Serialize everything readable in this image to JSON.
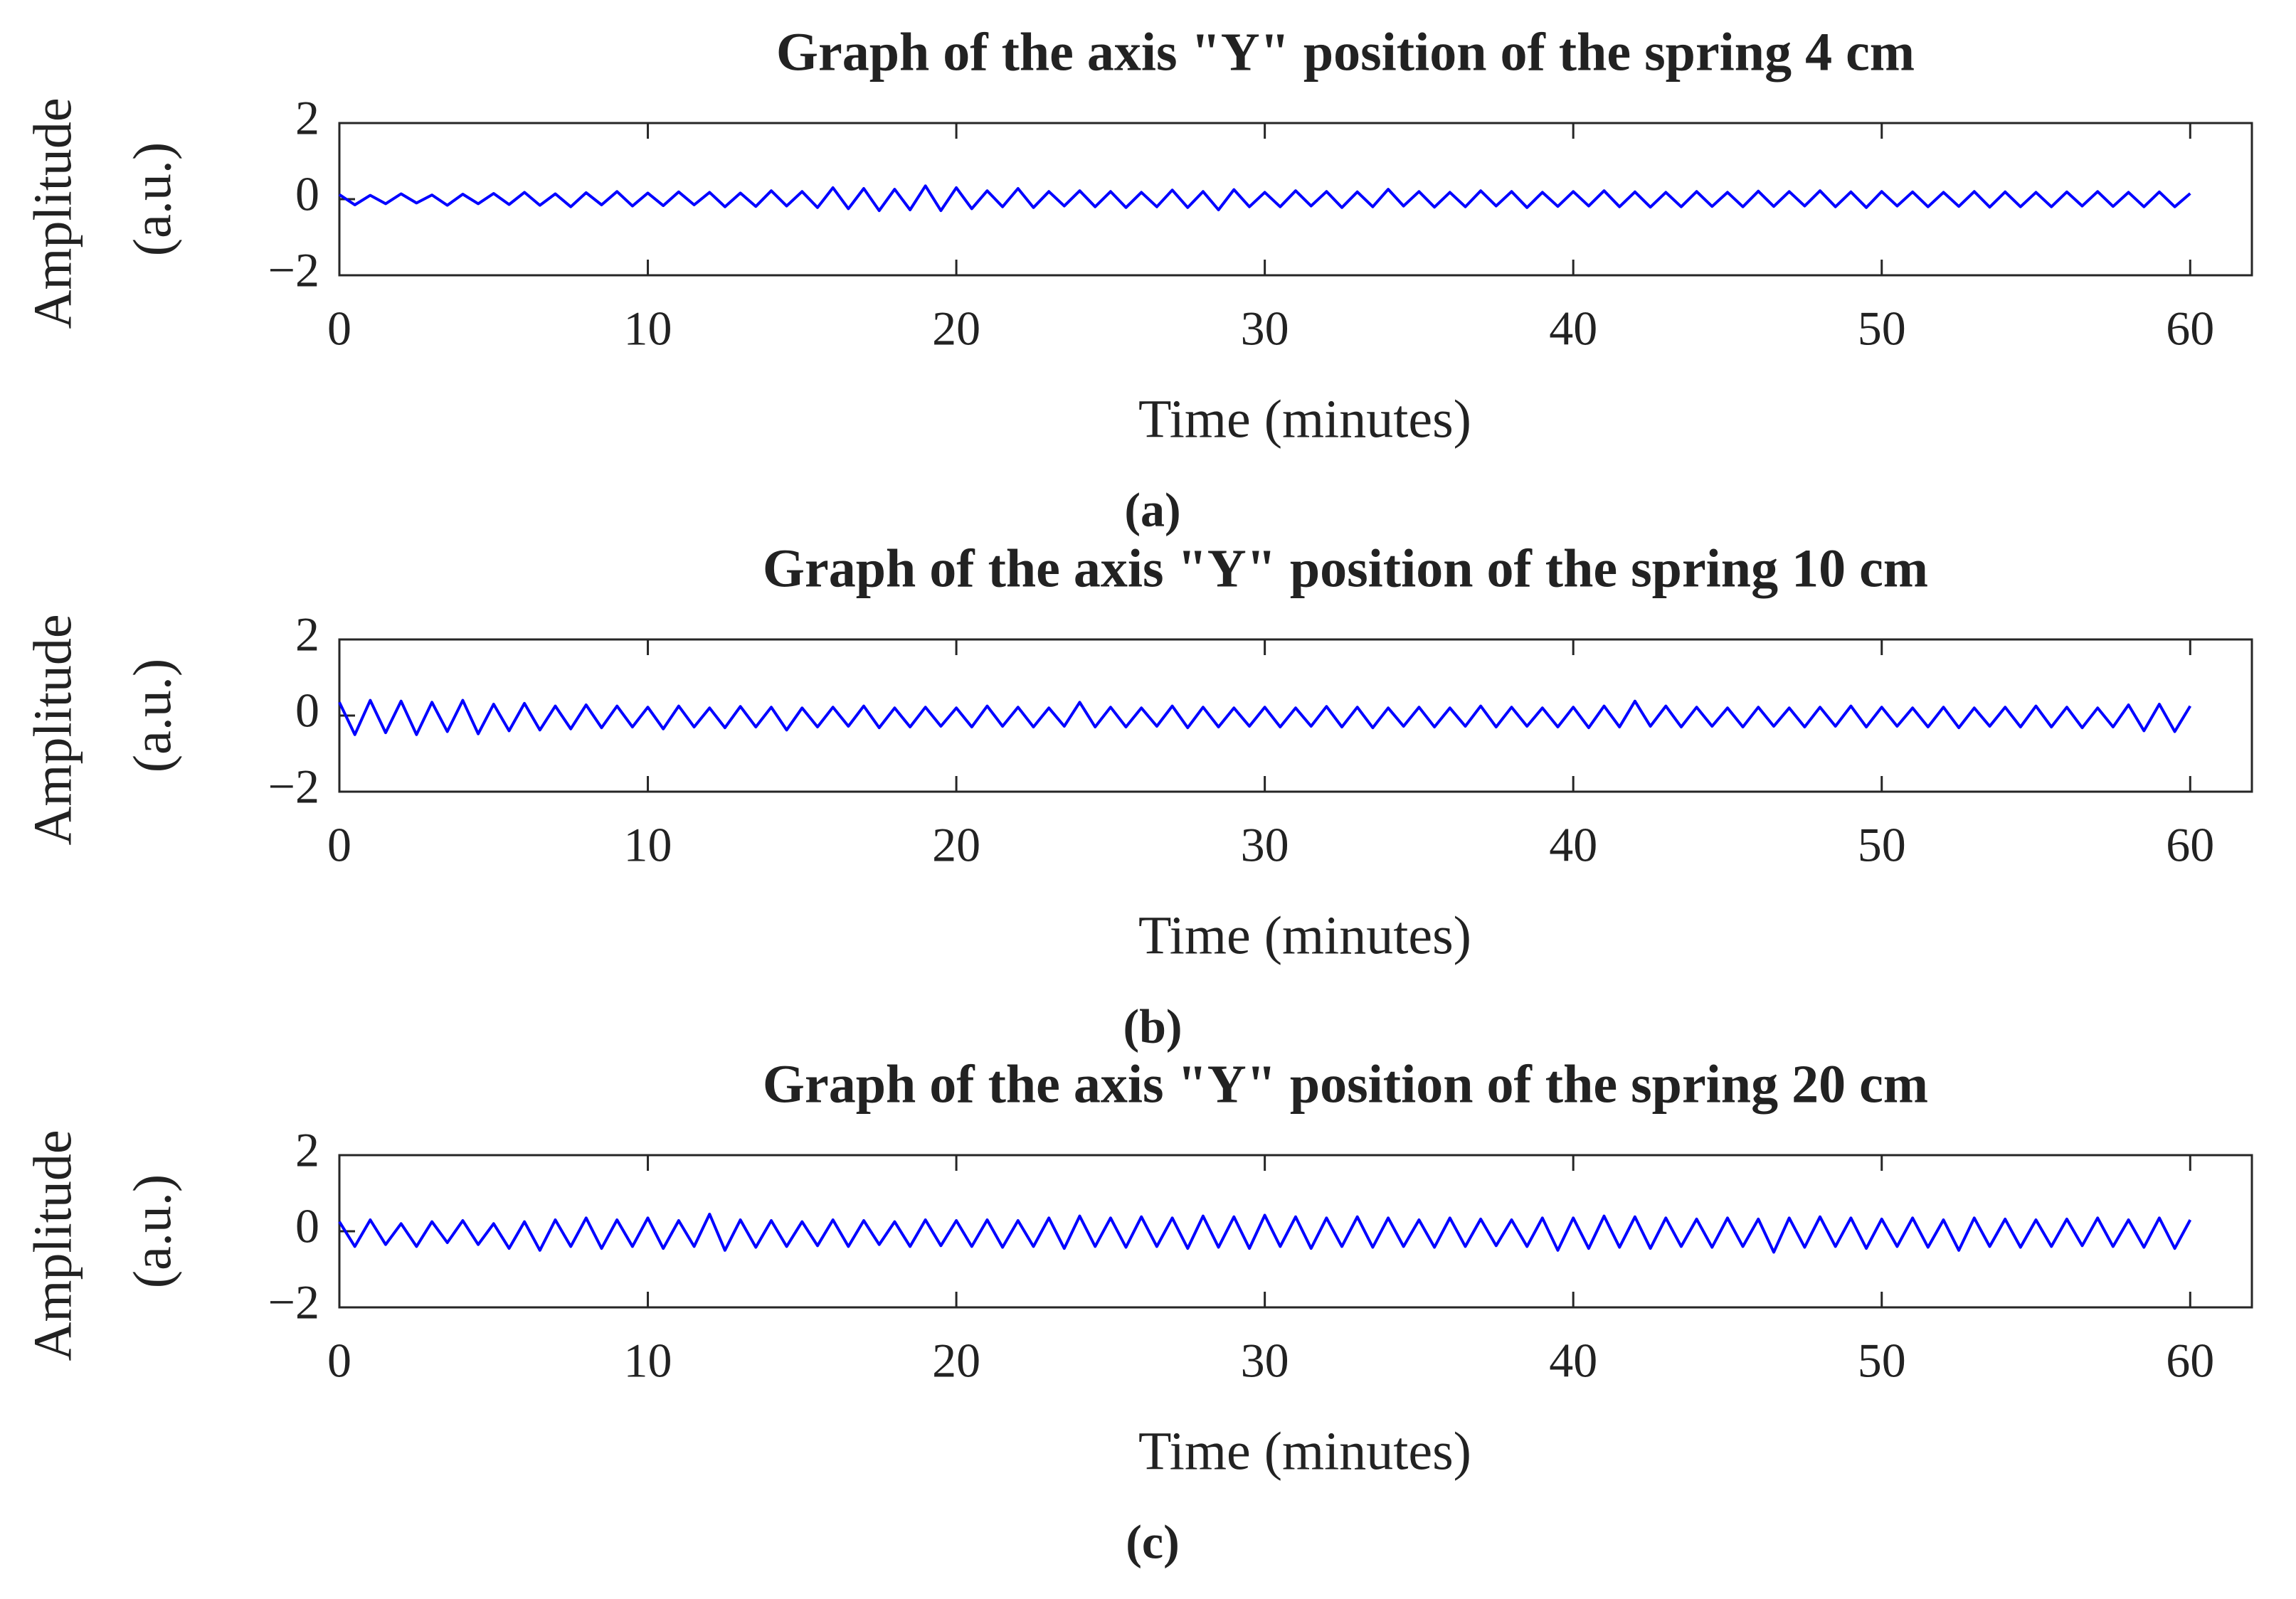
{
  "chart_data": [
    {
      "type": "line",
      "title": "Graph of the axis \"Y\" position of the spring 4 cm",
      "xlabel": "Time (minutes)",
      "ylabel": [
        "Amplitude",
        "(a.u.)"
      ],
      "caption": "(a)",
      "color": "#0000ff",
      "xlim": [
        0,
        62
      ],
      "xticks": [
        0,
        10,
        20,
        30,
        40,
        50,
        60
      ],
      "ylim": [
        -2,
        2
      ],
      "yticks": [
        {
          "value": -2,
          "label": "−2"
        },
        0,
        2
      ],
      "x": [
        0,
        0.5,
        1,
        1.5,
        2,
        2.5,
        3,
        3.5,
        4,
        4.5,
        5,
        5.5,
        6,
        6.5,
        7,
        7.5,
        8,
        8.5,
        9,
        9.5,
        10,
        10.5,
        11,
        11.5,
        12,
        12.5,
        13,
        13.5,
        14,
        14.5,
        15,
        15.5,
        16,
        16.5,
        17,
        17.5,
        18,
        18.5,
        19,
        19.5,
        20,
        20.5,
        21,
        21.5,
        22,
        22.5,
        23,
        23.5,
        24,
        24.5,
        25,
        25.5,
        26,
        26.5,
        27,
        27.5,
        28,
        28.5,
        29,
        29.5,
        30,
        30.5,
        31,
        31.5,
        32,
        32.5,
        33,
        33.5,
        34,
        34.5,
        35,
        35.5,
        36,
        36.5,
        37,
        37.5,
        38,
        38.5,
        39,
        39.5,
        40,
        40.5,
        41,
        41.5,
        42,
        42.5,
        43,
        43.5,
        44,
        44.5,
        45,
        45.5,
        46,
        46.5,
        47,
        47.5,
        48,
        48.5,
        49,
        49.5,
        50,
        50.5,
        51,
        51.5,
        52,
        52.5,
        53,
        53.5,
        54,
        54.5,
        55,
        55.5,
        56,
        56.5,
        57,
        57.5,
        58,
        58.5,
        59,
        59.5,
        60
      ],
      "values": [
        0.12,
        -0.15,
        0.1,
        -0.12,
        0.14,
        -0.1,
        0.11,
        -0.16,
        0.13,
        -0.12,
        0.15,
        -0.14,
        0.18,
        -0.16,
        0.14,
        -0.2,
        0.17,
        -0.15,
        0.2,
        -0.18,
        0.16,
        -0.17,
        0.19,
        -0.15,
        0.18,
        -0.2,
        0.16,
        -0.19,
        0.22,
        -0.18,
        0.2,
        -0.22,
        0.3,
        -0.25,
        0.28,
        -0.3,
        0.26,
        -0.28,
        0.35,
        -0.3,
        0.3,
        -0.25,
        0.22,
        -0.2,
        0.28,
        -0.22,
        0.2,
        -0.18,
        0.22,
        -0.2,
        0.2,
        -0.22,
        0.18,
        -0.2,
        0.24,
        -0.22,
        0.2,
        -0.28,
        0.25,
        -0.2,
        0.18,
        -0.2,
        0.22,
        -0.18,
        0.2,
        -0.22,
        0.19,
        -0.2,
        0.26,
        -0.18,
        0.2,
        -0.21,
        0.18,
        -0.2,
        0.22,
        -0.18,
        0.2,
        -0.22,
        0.18,
        -0.19,
        0.2,
        -0.18,
        0.22,
        -0.2,
        0.19,
        -0.21,
        0.18,
        -0.2,
        0.2,
        -0.19,
        0.18,
        -0.2,
        0.21,
        -0.19,
        0.2,
        -0.18,
        0.22,
        -0.2,
        0.19,
        -0.22,
        0.2,
        -0.18,
        0.19,
        -0.2,
        0.18,
        -0.19,
        0.2,
        -0.21,
        0.19,
        -0.2,
        0.18,
        -0.2,
        0.19,
        -0.18,
        0.2,
        -0.19,
        0.18,
        -0.2,
        0.19,
        -0.2,
        0.15
      ]
    },
    {
      "type": "line",
      "title": "Graph of the axis \"Y\" position of the spring 10 cm",
      "xlabel": "Time (minutes)",
      "ylabel": [
        "Amplitude",
        "(a.u.)"
      ],
      "caption": "(b)",
      "color": "#0000ff",
      "xlim": [
        0,
        62
      ],
      "xticks": [
        0,
        10,
        20,
        30,
        40,
        50,
        60
      ],
      "ylim": [
        -2,
        2
      ],
      "yticks": [
        {
          "value": -2,
          "label": "−2"
        },
        0,
        2
      ],
      "x": [
        0,
        0.5,
        1,
        1.5,
        2,
        2.5,
        3,
        3.5,
        4,
        4.5,
        5,
        5.5,
        6,
        6.5,
        7,
        7.5,
        8,
        8.5,
        9,
        9.5,
        10,
        10.5,
        11,
        11.5,
        12,
        12.5,
        13,
        13.5,
        14,
        14.5,
        15,
        15.5,
        16,
        16.5,
        17,
        17.5,
        18,
        18.5,
        19,
        19.5,
        20,
        20.5,
        21,
        21.5,
        22,
        22.5,
        23,
        23.5,
        24,
        24.5,
        25,
        25.5,
        26,
        26.5,
        27,
        27.5,
        28,
        28.5,
        29,
        29.5,
        30,
        30.5,
        31,
        31.5,
        32,
        32.5,
        33,
        33.5,
        34,
        34.5,
        35,
        35.5,
        36,
        36.5,
        37,
        37.5,
        38,
        38.5,
        39,
        39.5,
        40,
        40.5,
        41,
        41.5,
        42,
        42.5,
        43,
        43.5,
        44,
        44.5,
        45,
        45.5,
        46,
        46.5,
        47,
        47.5,
        48,
        48.5,
        49,
        49.5,
        50,
        50.5,
        51,
        51.5,
        52,
        52.5,
        53,
        53.5,
        54,
        54.5,
        55,
        55.5,
        56,
        56.5,
        57,
        57.5,
        58,
        58.5,
        59,
        59.5,
        60
      ],
      "values": [
        0.35,
        -0.5,
        0.4,
        -0.45,
        0.38,
        -0.5,
        0.35,
        -0.42,
        0.4,
        -0.48,
        0.3,
        -0.4,
        0.32,
        -0.38,
        0.25,
        -0.35,
        0.28,
        -0.32,
        0.25,
        -0.3,
        0.22,
        -0.35,
        0.25,
        -0.3,
        0.2,
        -0.32,
        0.24,
        -0.3,
        0.22,
        -0.38,
        0.2,
        -0.3,
        0.22,
        -0.28,
        0.25,
        -0.32,
        0.2,
        -0.3,
        0.22,
        -0.28,
        0.2,
        -0.3,
        0.25,
        -0.28,
        0.22,
        -0.3,
        0.2,
        -0.28,
        0.35,
        -0.3,
        0.22,
        -0.3,
        0.2,
        -0.28,
        0.25,
        -0.32,
        0.22,
        -0.3,
        0.2,
        -0.28,
        0.22,
        -0.3,
        0.2,
        -0.28,
        0.24,
        -0.3,
        0.22,
        -0.32,
        0.2,
        -0.28,
        0.22,
        -0.3,
        0.2,
        -0.28,
        0.25,
        -0.3,
        0.22,
        -0.28,
        0.2,
        -0.3,
        0.22,
        -0.32,
        0.25,
        -0.3,
        0.38,
        -0.28,
        0.25,
        -0.3,
        0.22,
        -0.28,
        0.2,
        -0.3,
        0.22,
        -0.28,
        0.2,
        -0.3,
        0.22,
        -0.28,
        0.25,
        -0.3,
        0.22,
        -0.28,
        0.2,
        -0.3,
        0.22,
        -0.32,
        0.2,
        -0.28,
        0.22,
        -0.3,
        0.25,
        -0.3,
        0.22,
        -0.32,
        0.2,
        -0.3,
        0.28,
        -0.4,
        0.3,
        -0.42,
        0.25
      ]
    },
    {
      "type": "line",
      "title": "Graph of the axis \"Y\" position of the spring 20 cm",
      "xlabel": "Time (minutes)",
      "ylabel": [
        "Amplitude",
        "(a.u.)"
      ],
      "caption": "(c)",
      "color": "#0000ff",
      "xlim": [
        0,
        62
      ],
      "xticks": [
        0,
        10,
        20,
        30,
        40,
        50,
        60
      ],
      "ylim": [
        -2,
        2
      ],
      "yticks": [
        {
          "value": -2,
          "label": "−2"
        },
        0,
        2
      ],
      "x": [
        0,
        0.5,
        1,
        1.5,
        2,
        2.5,
        3,
        3.5,
        4,
        4.5,
        5,
        5.5,
        6,
        6.5,
        7,
        7.5,
        8,
        8.5,
        9,
        9.5,
        10,
        10.5,
        11,
        11.5,
        12,
        12.5,
        13,
        13.5,
        14,
        14.5,
        15,
        15.5,
        16,
        16.5,
        17,
        17.5,
        18,
        18.5,
        19,
        19.5,
        20,
        20.5,
        21,
        21.5,
        22,
        22.5,
        23,
        23.5,
        24,
        24.5,
        25,
        25.5,
        26,
        26.5,
        27,
        27.5,
        28,
        28.5,
        29,
        29.5,
        30,
        30.5,
        31,
        31.5,
        32,
        32.5,
        33,
        33.5,
        34,
        34.5,
        35,
        35.5,
        36,
        36.5,
        37,
        37.5,
        38,
        38.5,
        39,
        39.5,
        40,
        40.5,
        41,
        41.5,
        42,
        42.5,
        43,
        43.5,
        44,
        44.5,
        45,
        45.5,
        46,
        46.5,
        47,
        47.5,
        48,
        48.5,
        49,
        49.5,
        50,
        50.5,
        51,
        51.5,
        52,
        52.5,
        53,
        53.5,
        54,
        54.5,
        55,
        55.5,
        56,
        56.5,
        57,
        57.5,
        58,
        58.5,
        59,
        59.5,
        60
      ],
      "values": [
        0.25,
        -0.4,
        0.3,
        -0.35,
        0.2,
        -0.4,
        0.25,
        -0.3,
        0.28,
        -0.35,
        0.2,
        -0.45,
        0.25,
        -0.5,
        0.3,
        -0.4,
        0.35,
        -0.45,
        0.3,
        -0.4,
        0.35,
        -0.45,
        0.28,
        -0.4,
        0.45,
        -0.5,
        0.3,
        -0.42,
        0.28,
        -0.4,
        0.25,
        -0.38,
        0.3,
        -0.4,
        0.28,
        -0.35,
        0.25,
        -0.4,
        0.3,
        -0.38,
        0.28,
        -0.4,
        0.3,
        -0.42,
        0.28,
        -0.4,
        0.35,
        -0.45,
        0.4,
        -0.4,
        0.35,
        -0.42,
        0.38,
        -0.4,
        0.35,
        -0.45,
        0.4,
        -0.42,
        0.38,
        -0.45,
        0.42,
        -0.4,
        0.38,
        -0.45,
        0.35,
        -0.4,
        0.38,
        -0.42,
        0.35,
        -0.4,
        0.3,
        -0.42,
        0.35,
        -0.4,
        0.32,
        -0.38,
        0.3,
        -0.4,
        0.35,
        -0.5,
        0.35,
        -0.45,
        0.4,
        -0.42,
        0.38,
        -0.45,
        0.35,
        -0.4,
        0.32,
        -0.42,
        0.35,
        -0.4,
        0.32,
        -0.55,
        0.35,
        -0.42,
        0.38,
        -0.4,
        0.35,
        -0.45,
        0.32,
        -0.4,
        0.35,
        -0.42,
        0.3,
        -0.5,
        0.35,
        -0.4,
        0.32,
        -0.42,
        0.3,
        -0.4,
        0.32,
        -0.38,
        0.35,
        -0.4,
        0.3,
        -0.42,
        0.35,
        -0.45,
        0.3
      ]
    }
  ]
}
